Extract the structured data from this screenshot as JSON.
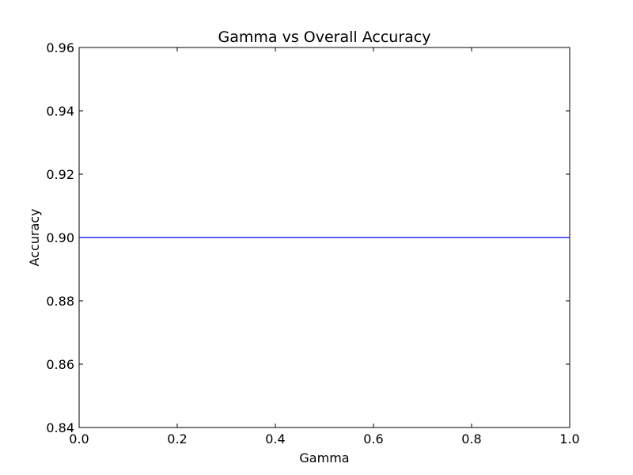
{
  "chart_data": {
    "type": "line",
    "title": "Gamma vs Overall Accuracy",
    "xlabel": "Gamma",
    "ylabel": "Accuracy",
    "xlim": [
      0.0,
      1.0
    ],
    "ylim": [
      0.84,
      0.96
    ],
    "x_ticks": [
      "0.0",
      "0.2",
      "0.4",
      "0.6",
      "0.8",
      "1.0"
    ],
    "y_ticks": [
      "0.84",
      "0.86",
      "0.88",
      "0.90",
      "0.92",
      "0.94",
      "0.96"
    ],
    "grid": false,
    "series": [
      {
        "color": "#0000ff",
        "x": [
          0.0,
          1.0
        ],
        "y": [
          0.9,
          0.9
        ]
      }
    ]
  }
}
